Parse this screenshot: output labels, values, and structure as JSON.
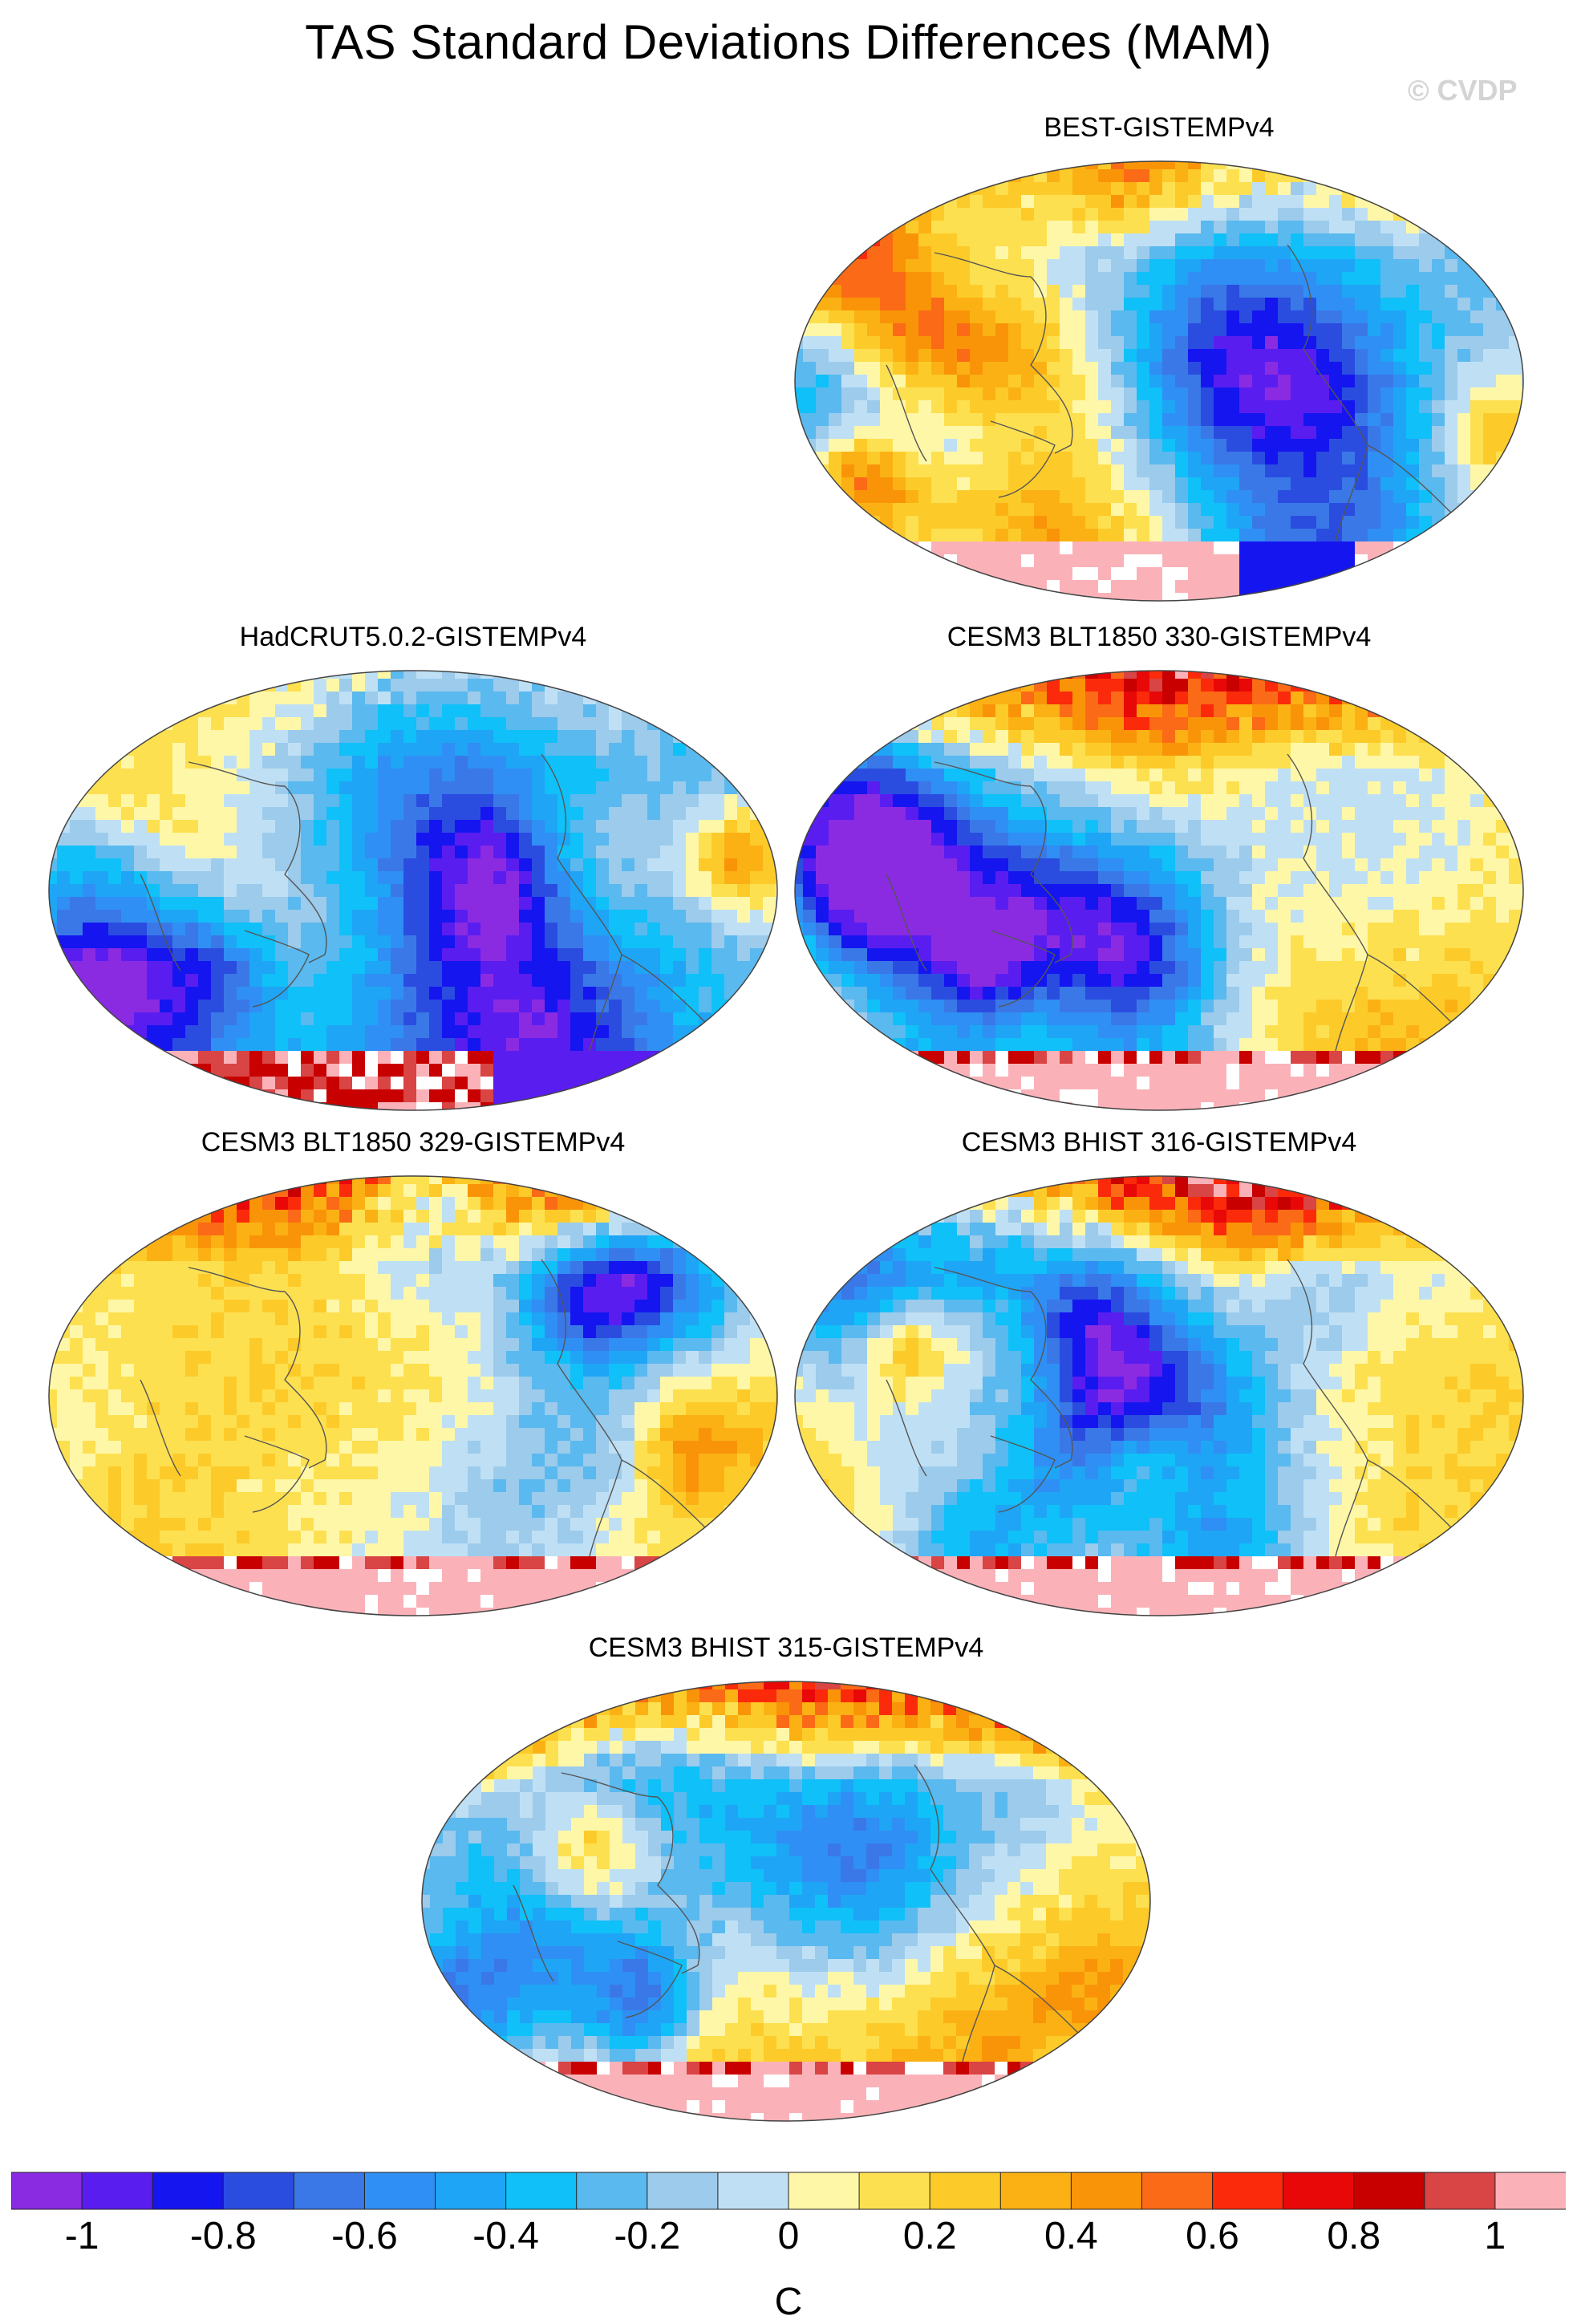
{
  "title": "TAS Standard Deviations Differences (MAM)",
  "watermark": "© CVDP",
  "panels": [
    {
      "title": "BEST-GISTEMPv4",
      "seed": 11,
      "bias": -0.15,
      "north": 0.35,
      "south": "mixed"
    },
    {
      "title": "HadCRUT5.0.2-GISTEMPv4",
      "seed": 23,
      "bias": -0.2,
      "north": 0.2,
      "south": "strong"
    },
    {
      "title": "CESM3 BLT1850 330-GISTEMPv4",
      "seed": 37,
      "bias": 0.12,
      "north": 0.55,
      "south": "pink"
    },
    {
      "title": "CESM3 BLT1850 329-GISTEMPv4",
      "seed": 41,
      "bias": 0.15,
      "north": 0.6,
      "south": "pink"
    },
    {
      "title": "CESM3 BHIST 316-GISTEMPv4",
      "seed": 53,
      "bias": 0.18,
      "north": 0.62,
      "south": "pink"
    },
    {
      "title": "CESM3 BHIST 315-GISTEMPv4",
      "seed": 67,
      "bias": 0.22,
      "north": 0.58,
      "south": "pink"
    }
  ],
  "colorbar": {
    "unit": "C",
    "labels": [
      "-1",
      "-0.8",
      "-0.6",
      "-0.4",
      "-0.2",
      "0",
      "0.2",
      "0.4",
      "0.6",
      "0.8",
      "1"
    ],
    "colors": [
      "#8a2be2",
      "#5a1df0",
      "#1515f0",
      "#2a4de0",
      "#3a78e8",
      "#2f8ff5",
      "#1fa5f5",
      "#10c0f8",
      "#5ab9ee",
      "#9ccbec",
      "#bfe0f4",
      "#fff7a8",
      "#fde050",
      "#fccb2a",
      "#fbb114",
      "#f99408",
      "#fb6a16",
      "#fb2a0a",
      "#e80808",
      "#c80000",
      "#d94444",
      "#fab2b8"
    ]
  }
}
